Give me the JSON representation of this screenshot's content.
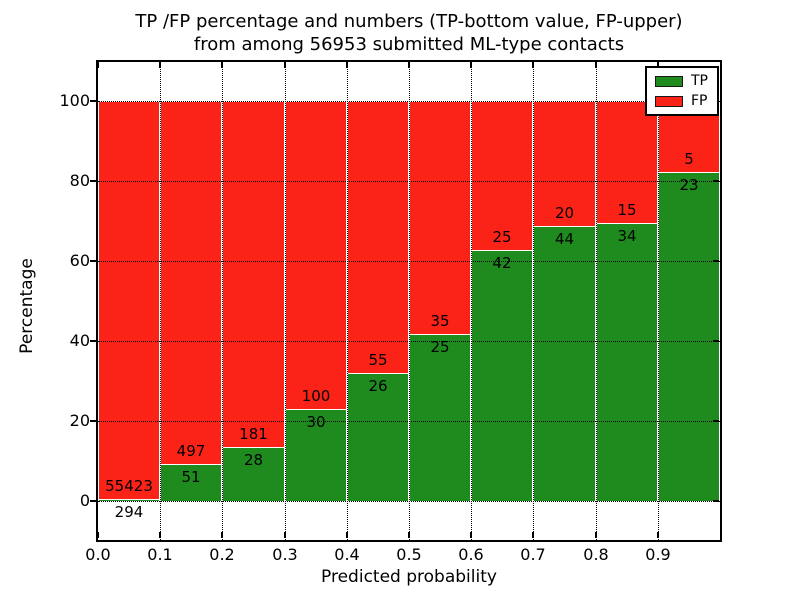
{
  "title": {
    "line1": "TP /FP percentage and numbers (TP-bottom value, FP-upper)",
    "line2": "from among 56953 submitted ML-type contacts"
  },
  "axis": {
    "xlabel": "Predicted probability",
    "ylabel": "Percentage"
  },
  "ticks": {
    "y_labels": [
      "0",
      "20",
      "40",
      "60",
      "80",
      "100"
    ],
    "y_values": [
      0,
      20,
      40,
      60,
      80,
      100
    ],
    "x_labels": [
      "0.0",
      "0.1",
      "0.2",
      "0.3",
      "0.4",
      "0.5",
      "0.6",
      "0.7",
      "0.8",
      "0.9"
    ]
  },
  "legend": {
    "items": [
      {
        "label": "TP",
        "color_key": "tp"
      },
      {
        "label": "FP",
        "color_key": "fp"
      }
    ]
  },
  "colors": {
    "tp": "#1f8b1f",
    "fp": "#fb2318",
    "grid": "#000000"
  },
  "chart_data": {
    "type": "bar",
    "stacked": true,
    "units": "percent of bin, annotated with raw counts",
    "title": "TP /FP percentage and numbers (TP-bottom value, FP-upper) from among 56953 submitted ML-type contacts",
    "xlabel": "Predicted probability",
    "ylabel": "Percentage",
    "xlim": [
      0.0,
      1.0
    ],
    "ylim_approx": [
      -9.5,
      110
    ],
    "grid": true,
    "legend_position": "upper right",
    "total_contacts": 56953,
    "bin_starts": [
      0.0,
      0.1,
      0.2,
      0.3,
      0.4,
      0.5,
      0.6,
      0.7,
      0.8,
      0.9
    ],
    "bin_width": 0.1,
    "series": [
      {
        "name": "TP",
        "counts": [
          294,
          51,
          28,
          30,
          26,
          25,
          42,
          44,
          34,
          23
        ]
      },
      {
        "name": "FP",
        "counts": [
          55423,
          497,
          181,
          100,
          55,
          35,
          25,
          20,
          15,
          5
        ]
      }
    ],
    "tp_percent": [
      0.53,
      9.31,
      13.4,
      23.08,
      32.1,
      41.67,
      62.69,
      68.75,
      69.39,
      82.14
    ]
  }
}
